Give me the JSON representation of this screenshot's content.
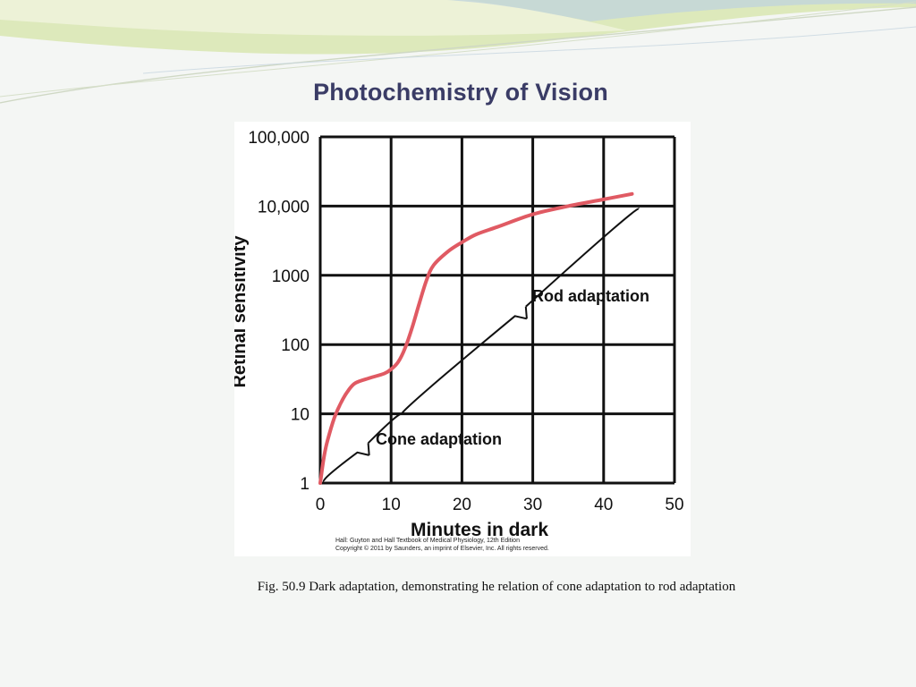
{
  "slide": {
    "title": "Photochemistry of Vision",
    "caption": "Fig. 50.9  Dark adaptation, demonstrating he relation of cone adaptation to rod adaptation",
    "credit_line1": "Hall: Guyton and Hall Textbook of Medical Physiology, 12th Edition",
    "credit_line2": "Copyright © 2011 by Saunders, an imprint of Elsevier, Inc. All rights reserved."
  },
  "colors": {
    "curve": "#e05a63",
    "grid": "#111111",
    "title": "#3a3c66",
    "background": "#f4f6f4"
  },
  "chart_data": {
    "type": "line",
    "xlabel": "Minutes in dark",
    "ylabel": "Retinal sensitivity",
    "xlim": [
      0,
      50
    ],
    "ylim": [
      1,
      100000
    ],
    "yscale": "log",
    "grid": true,
    "x_ticks": [
      0,
      10,
      20,
      30,
      40,
      50
    ],
    "x_tick_labels": [
      "0",
      "10",
      "20",
      "30",
      "40",
      "50"
    ],
    "y_ticks": [
      1,
      10,
      100,
      1000,
      10000,
      100000
    ],
    "y_tick_labels": [
      "1",
      "10",
      "100",
      "1000",
      "10,000",
      "100,000"
    ],
    "series": [
      {
        "x": [
          0,
          0.5,
          1,
          2,
          3,
          4,
          5,
          7,
          9,
          10,
          11,
          12,
          13,
          14,
          15,
          16,
          18,
          20,
          22,
          25,
          30,
          35,
          40,
          44
        ],
        "y": [
          1,
          2.3,
          4,
          8.8,
          15,
          22,
          28,
          33,
          38,
          44,
          56,
          90,
          180,
          400,
          850,
          1400,
          2200,
          3000,
          3900,
          5000,
          7600,
          10000,
          12500,
          15000
        ]
      }
    ],
    "annotations": [
      {
        "text": "Cone adaptation",
        "x": 0.5,
        "x_end": 11.5
      },
      {
        "text": "Rod adaptation",
        "x": 11.5,
        "x_end": 45
      }
    ]
  }
}
